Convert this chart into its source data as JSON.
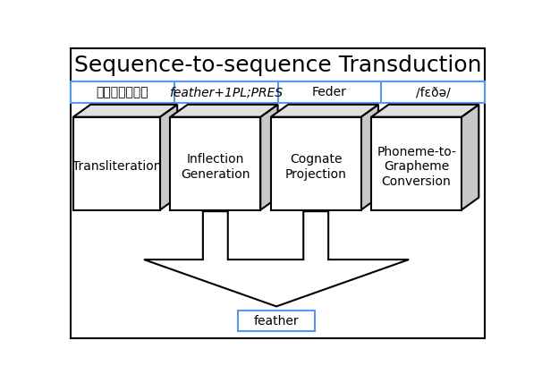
{
  "title": "Sequence-to-sequence Transduction",
  "title_fontsize": 18,
  "box_labels": [
    "Transliteration",
    "Inflection\nGeneration",
    "Cognate\nProjection",
    "Phoneme-to-\nGrapheme\nConversion"
  ],
  "input_label_0": "เฟเทอร์",
  "input_label_1_plain": "feather",
  "input_label_1_rest": "+1PL;PRES",
  "input_label_2": "Feder",
  "input_label_3": "/fɛðə/",
  "output_label": "feather",
  "bg_color": "#ffffff",
  "box_face_color": "#ffffff",
  "box_side_color": "#c8c8c8",
  "box_top_color": "#e0e0e0",
  "border_color": "#000000",
  "input_border_color": "#5599ee",
  "arrow_color": "#000000",
  "label_fontsize": 10,
  "input_fontsize": 10,
  "output_fontsize": 10
}
